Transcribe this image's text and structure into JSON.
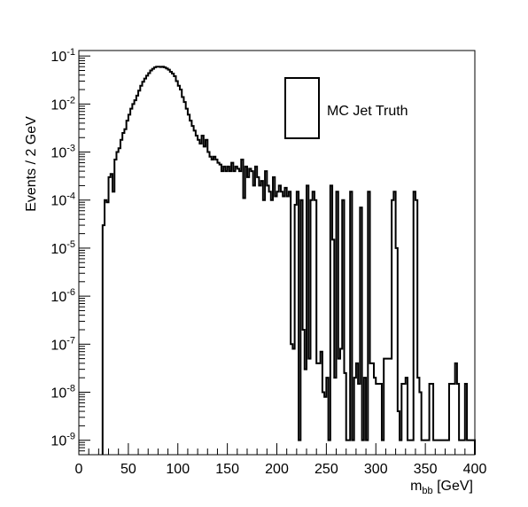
{
  "chart_data": {
    "type": "histogram",
    "xlabel_main": "m",
    "xlabel_sub": "bb",
    "xlabel_unit": " [GeV]",
    "ylabel": "Events / 2 GeV",
    "xlim": [
      0,
      400
    ],
    "ylim": [
      5e-10,
      0.13
    ],
    "yscale": "log",
    "bin_width": 2,
    "x_ticks": [
      "0",
      "50",
      "100",
      "150",
      "200",
      "250",
      "300",
      "350",
      "400"
    ],
    "y_ticks": [
      {
        "base": "10",
        "exp": "-9"
      },
      {
        "base": "10",
        "exp": "-8"
      },
      {
        "base": "10",
        "exp": "-7"
      },
      {
        "base": "10",
        "exp": "-6"
      },
      {
        "base": "10",
        "exp": "-5"
      },
      {
        "base": "10",
        "exp": "-4"
      },
      {
        "base": "10",
        "exp": "-3"
      },
      {
        "base": "10",
        "exp": "-2"
      },
      {
        "base": "10",
        "exp": "-1"
      }
    ],
    "legend": {
      "label": "MC Jet Truth",
      "placement": "top-right"
    },
    "series": [
      {
        "name": "MC Jet Truth",
        "bins": [
          [
            24,
            3e-05
          ],
          [
            26,
            0.0001
          ],
          [
            28,
            9e-05
          ],
          [
            30,
            0.0003
          ],
          [
            32,
            0.00035
          ],
          [
            34,
            0.00015
          ],
          [
            36,
            0.0007
          ],
          [
            38,
            0.001
          ],
          [
            40,
            0.0012
          ],
          [
            42,
            0.0018
          ],
          [
            44,
            0.0025
          ],
          [
            46,
            0.003
          ],
          [
            48,
            0.0045
          ],
          [
            50,
            0.006
          ],
          [
            52,
            0.008
          ],
          [
            54,
            0.01
          ],
          [
            56,
            0.012
          ],
          [
            58,
            0.015
          ],
          [
            60,
            0.019
          ],
          [
            62,
            0.024
          ],
          [
            64,
            0.029
          ],
          [
            66,
            0.034
          ],
          [
            68,
            0.039
          ],
          [
            70,
            0.044
          ],
          [
            72,
            0.05
          ],
          [
            74,
            0.054
          ],
          [
            76,
            0.058
          ],
          [
            78,
            0.06
          ],
          [
            80,
            0.06
          ],
          [
            82,
            0.059
          ],
          [
            84,
            0.06
          ],
          [
            86,
            0.058
          ],
          [
            88,
            0.055
          ],
          [
            90,
            0.052
          ],
          [
            92,
            0.047
          ],
          [
            94,
            0.043
          ],
          [
            96,
            0.038
          ],
          [
            98,
            0.03
          ],
          [
            100,
            0.024
          ],
          [
            102,
            0.02
          ],
          [
            104,
            0.014
          ],
          [
            106,
            0.011
          ],
          [
            108,
            0.008
          ],
          [
            110,
            0.006
          ],
          [
            112,
            0.0045
          ],
          [
            114,
            0.0035
          ],
          [
            116,
            0.0028
          ],
          [
            118,
            0.0022
          ],
          [
            120,
            0.0018
          ],
          [
            122,
            0.0015
          ],
          [
            124,
            0.0022
          ],
          [
            126,
            0.0013
          ],
          [
            128,
            0.0018
          ],
          [
            130,
            0.001
          ],
          [
            132,
            0.0008
          ],
          [
            134,
            0.0007
          ],
          [
            136,
            0.0008
          ],
          [
            138,
            0.0007
          ],
          [
            140,
            0.0006
          ],
          [
            142,
            0.00055
          ],
          [
            144,
            0.0004
          ],
          [
            146,
            0.0005
          ],
          [
            148,
            0.0004
          ],
          [
            150,
            0.0005
          ],
          [
            152,
            0.0004
          ],
          [
            154,
            0.0006
          ],
          [
            156,
            0.0004
          ],
          [
            158,
            0.0005
          ],
          [
            160,
            0.00045
          ],
          [
            162,
            0.0004
          ],
          [
            164,
            0.0007
          ],
          [
            166,
            0.00011
          ],
          [
            168,
            0.0005
          ],
          [
            170,
            0.0003
          ],
          [
            172,
            0.00045
          ],
          [
            174,
            0.0004
          ],
          [
            176,
            0.0002
          ],
          [
            178,
            0.0005
          ],
          [
            180,
            0.0003
          ],
          [
            182,
            0.0002
          ],
          [
            184,
            0.00025
          ],
          [
            186,
            0.0001
          ],
          [
            188,
            0.0004
          ],
          [
            190,
            0.0002
          ],
          [
            192,
            0.00015
          ],
          [
            194,
            0.0001
          ],
          [
            196,
            0.0003
          ],
          [
            198,
            0.00012
          ],
          [
            200,
            0.00015
          ],
          [
            202,
            0.0002
          ],
          [
            204,
            0.00015
          ],
          [
            206,
            0.00012
          ],
          [
            208,
            0.00018
          ],
          [
            210,
            0.00012
          ],
          [
            212,
            0.00015
          ],
          [
            214,
            1e-07
          ],
          [
            216,
            8e-08
          ],
          [
            218,
            8e-05
          ],
          [
            220,
            0.00015
          ],
          [
            222,
            1e-09
          ],
          [
            224,
            0.0001
          ],
          [
            226,
            2e-07
          ],
          [
            228,
            3e-08
          ],
          [
            230,
            0.0002
          ],
          [
            232,
            5e-08
          ],
          [
            234,
            0.0001
          ],
          [
            236,
            0.00015
          ],
          [
            238,
            0.0001
          ],
          [
            240,
            4e-08
          ],
          [
            242,
            4e-08
          ],
          [
            244,
            7e-08
          ],
          [
            246,
            1e-08
          ],
          [
            248,
            8e-09
          ],
          [
            250,
            2e-08
          ],
          [
            252,
            1e-09
          ],
          [
            254,
            0.0002
          ],
          [
            256,
            1.5e-05
          ],
          [
            258,
            2e-08
          ],
          [
            260,
            0.00015
          ],
          [
            262,
            5e-08
          ],
          [
            264,
            8e-08
          ],
          [
            266,
            0.0001
          ],
          [
            268,
            2.5e-08
          ],
          [
            270,
            1e-09
          ],
          [
            272,
            1e-09
          ],
          [
            274,
            0.00015
          ],
          [
            276,
            1e-09
          ],
          [
            278,
            2e-08
          ],
          [
            280,
            4e-08
          ],
          [
            282,
            1.5e-08
          ],
          [
            284,
            7e-05
          ],
          [
            286,
            1e-09
          ],
          [
            288,
            2e-08
          ],
          [
            290,
            1e-09
          ],
          [
            292,
            0.00015
          ],
          [
            294,
            4e-08
          ],
          [
            296,
            4e-08
          ],
          [
            298,
            2e-08
          ],
          [
            300,
            1.5e-08
          ],
          [
            302,
            1.5e-08
          ],
          [
            304,
            1.5e-08
          ],
          [
            306,
            1e-09
          ],
          [
            308,
            5e-08
          ],
          [
            310,
            5e-08
          ],
          [
            312,
            5e-08
          ],
          [
            314,
            5e-08
          ],
          [
            316,
            0.0001
          ],
          [
            318,
            0.00015
          ],
          [
            320,
            1e-05
          ],
          [
            322,
            4e-09
          ],
          [
            324,
            1e-09
          ],
          [
            326,
            1.5e-08
          ],
          [
            328,
            1.5e-08
          ],
          [
            330,
            2e-08
          ],
          [
            332,
            1e-09
          ],
          [
            334,
            1e-09
          ],
          [
            336,
            1e-09
          ],
          [
            338,
            0.00015
          ],
          [
            340,
            0.0001
          ],
          [
            342,
            2e-08
          ],
          [
            344,
            1e-08
          ],
          [
            346,
            1e-09
          ],
          [
            348,
            1e-09
          ],
          [
            350,
            1e-09
          ],
          [
            352,
            1e-09
          ],
          [
            354,
            1.5e-08
          ],
          [
            356,
            1.5e-08
          ],
          [
            358,
            1e-09
          ],
          [
            360,
            1e-09
          ],
          [
            362,
            1e-09
          ],
          [
            364,
            1e-09
          ],
          [
            366,
            1e-09
          ],
          [
            368,
            1e-09
          ],
          [
            370,
            1e-09
          ],
          [
            372,
            1e-09
          ],
          [
            374,
            1.5e-08
          ],
          [
            376,
            1.5e-08
          ],
          [
            378,
            1.5e-08
          ],
          [
            380,
            4e-08
          ],
          [
            382,
            1.5e-08
          ],
          [
            384,
            1e-09
          ],
          [
            386,
            1e-09
          ],
          [
            388,
            1e-09
          ],
          [
            390,
            1.5e-08
          ],
          [
            392,
            1e-09
          ],
          [
            394,
            1e-09
          ],
          [
            396,
            1e-09
          ],
          [
            398,
            1e-09
          ]
        ]
      }
    ]
  }
}
